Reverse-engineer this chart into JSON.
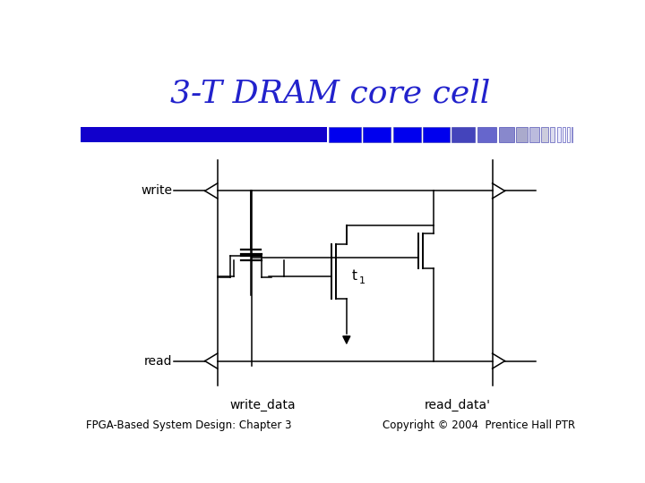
{
  "title": "3-T DRAM core cell",
  "title_color": "#2222cc",
  "title_fontsize": 26,
  "bg_color": "#ffffff",
  "footer_left": "FPGA-Based System Design: Chapter 3",
  "footer_right": "Copyright © 2004  Prentice Hall PTR",
  "footer_fontsize": 8.5,
  "write_label": "write",
  "read_label": "read",
  "write_data_label": "write_data",
  "read_data_label": "read_data'",
  "t1_label": "t",
  "t1_sub": "1",
  "bar_big_color": "#1100cc",
  "bar_blocks": [
    [
      358,
      46,
      "#0000ee"
    ],
    [
      407,
      40,
      "#0000ee"
    ],
    [
      450,
      40,
      "#0000ee"
    ],
    [
      493,
      38,
      "#0000ee"
    ],
    [
      534,
      34,
      "#4444bb"
    ],
    [
      571,
      28,
      "#6666cc"
    ],
    [
      602,
      22,
      "#8888cc"
    ],
    [
      627,
      17,
      "#aaaacc"
    ],
    [
      647,
      13,
      "#bbbbdd"
    ],
    [
      663,
      10,
      "#ccccdd"
    ],
    [
      676,
      7,
      "#ddddee"
    ],
    [
      686,
      5,
      "#eeeeff"
    ],
    [
      694,
      4,
      "#f2f2ff"
    ],
    [
      701,
      3,
      "#f8f8ff"
    ],
    [
      707,
      2,
      "#fafaff"
    ]
  ]
}
